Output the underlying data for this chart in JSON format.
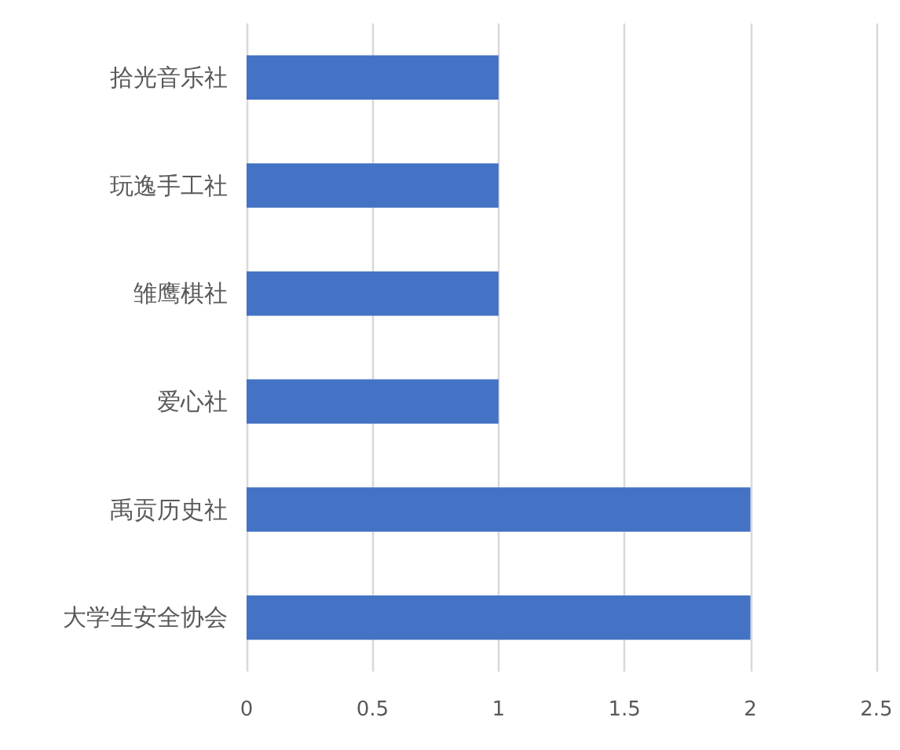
{
  "chart_data": {
    "type": "bar",
    "orientation": "horizontal",
    "categories": [
      "拾光音乐社",
      "玩逸手工社",
      "雏鹰棋社",
      "爱心社",
      "禹贡历史社",
      "大学生安全协会"
    ],
    "values": [
      1,
      1,
      1,
      1,
      2,
      2
    ],
    "color": "#4472c4",
    "xlim": [
      0,
      2.5
    ],
    "xticks": [
      0,
      0.5,
      1,
      1.5,
      2,
      2.5
    ],
    "grid": "x"
  }
}
